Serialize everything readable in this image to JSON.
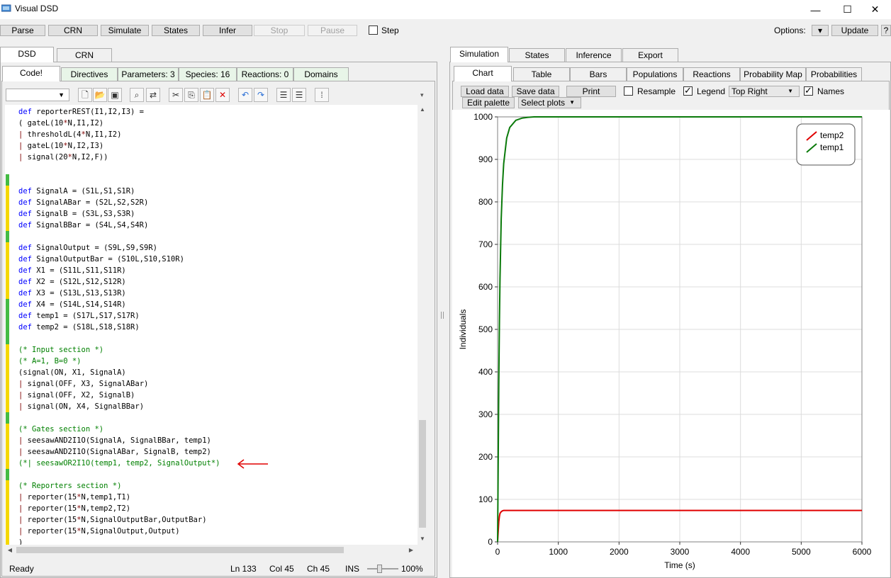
{
  "window": {
    "title": "Visual DSD"
  },
  "toolbar": {
    "parse": "Parse",
    "crn": "CRN",
    "simulate": "Simulate",
    "states": "States",
    "infer": "Infer",
    "stop": "Stop",
    "pause": "Pause",
    "step": "Step",
    "options": "Options:",
    "update": "Update",
    "help": "?"
  },
  "left_tabs": {
    "dsd": "DSD",
    "crn": "CRN"
  },
  "editor_tabs": {
    "code": "Code!",
    "directives": "Directives",
    "parameters": "Parameters: 3",
    "species": "Species: 16",
    "reactions": "Reactions: 0",
    "domains": "Domains"
  },
  "code": [
    "def reporterREST(I1,I2,I3) =",
    "( gateL(10*N,I1,I2)",
    "| thresholdL(4*N,I1,I2)",
    "| gateL(10*N,I2,I3)",
    "| signal(20*N,I2,F))",
    "",
    "",
    "def SignalA = (S1L,S1,S1R)",
    "def SignalABar = (S2L,S2,S2R)",
    "def SignalB = (S3L,S3,S3R)",
    "def SignalBBar = (S4L,S4,S4R)",
    "",
    "def SignalOutput = (S9L,S9,S9R)",
    "def SignalOutputBar = (S10L,S10,S10R)",
    "def X1 = (S11L,S11,S11R)",
    "def X2 = (S12L,S12,S12R)",
    "def X3 = (S13L,S13,S13R)",
    "def X4 = (S14L,S14,S14R)",
    "def temp1 = (S17L,S17,S17R)",
    "def temp2 = (S18L,S18,S18R)",
    "",
    "(* Input section *)",
    "(* A=1, B=0 *)",
    "(signal(ON, X1, SignalA)",
    "| signal(OFF, X3, SignalABar)",
    "| signal(OFF, X2, SignalB)",
    "| signal(ON, X4, SignalBBar)",
    "",
    "(* Gates section *)",
    "| seesawAND2I1O(SignalA, SignalBBar, temp1)",
    "| seesawAND2I1O(SignalABar, SignalB, temp2)",
    "(*| seesawOR2I1O(temp1, temp2, SignalOutput*)",
    "",
    "(* Reporters section *)",
    "| reporter(15*N,temp1,T1)",
    "| reporter(15*N,temp2,T2)",
    "| reporter(15*N,SignalOutputBar,OutputBar)",
    "| reporter(15*N,SignalOutput,Output)",
    ")"
  ],
  "status": {
    "ready": "Ready",
    "ln": "Ln 133",
    "col": "Col 45",
    "ch": "Ch 45",
    "ins": "INS",
    "zoom": "100%"
  },
  "right_tabs": {
    "simulation": "Simulation",
    "states": "States",
    "inference": "Inference",
    "export": "Export"
  },
  "sim_tabs": {
    "chart": "Chart",
    "table": "Table",
    "bars": "Bars",
    "populations": "Populations",
    "reactions": "Reactions",
    "probability_map": "Probability Map",
    "probabilities": "Probabilities"
  },
  "chart_toolbar": {
    "load": "Load data",
    "save": "Save data",
    "print": "Print",
    "resample": "Resample",
    "legend": "Legend",
    "legend_pos": "Top Right",
    "names": "Names",
    "edit_palette": "Edit palette",
    "select_plots": "Select plots"
  },
  "colors": {
    "temp1": "#0a7a0a",
    "temp2": "#e00000"
  },
  "chart_data": {
    "type": "line",
    "xlabel": "Time (s)",
    "ylabel": "Individuals",
    "xlim": [
      0,
      6000
    ],
    "ylim": [
      0,
      1000
    ],
    "xticks": [
      0,
      1000,
      2000,
      3000,
      4000,
      5000,
      6000
    ],
    "yticks": [
      0,
      100,
      200,
      300,
      400,
      500,
      600,
      700,
      800,
      900,
      1000
    ],
    "grid": true,
    "legend_position": "top-right",
    "series": [
      {
        "name": "temp2",
        "color": "#e00000",
        "x": [
          0,
          10,
          20,
          30,
          40,
          60,
          80,
          100,
          150,
          200,
          6000
        ],
        "y": [
          0,
          25,
          48,
          60,
          67,
          71,
          73,
          74,
          74,
          74,
          74
        ]
      },
      {
        "name": "temp1",
        "color": "#0a7a0a",
        "x": [
          0,
          10,
          20,
          30,
          40,
          60,
          80,
          100,
          150,
          200,
          300,
          400,
          500,
          600,
          700,
          6000
        ],
        "y": [
          0,
          200,
          380,
          520,
          620,
          760,
          840,
          890,
          950,
          975,
          992,
          997,
          999,
          1000,
          1000,
          1000
        ]
      }
    ]
  }
}
